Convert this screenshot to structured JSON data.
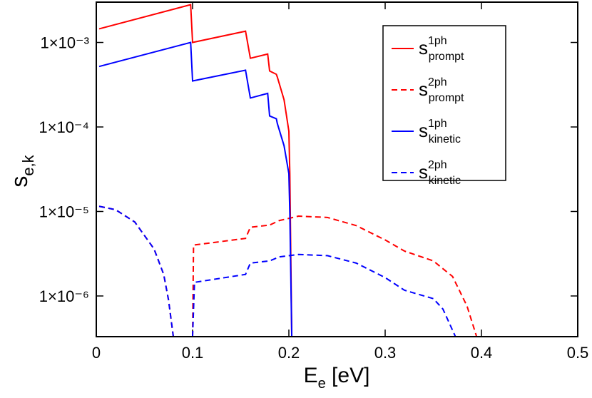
{
  "chart_data": {
    "type": "line",
    "xlabel": "E",
    "xlabel_sub": "e",
    "xlabel_rest": " [eV]",
    "ylabel": "s",
    "ylabel_sub": "e,k",
    "xlim": [
      0,
      0.5
    ],
    "xticks": [
      0,
      0.1,
      0.2,
      0.3,
      0.4,
      0.5
    ],
    "ylog": true,
    "ylim": [
      3.3e-07,
      0.003
    ],
    "yticks": [
      {
        "value": 1e-06,
        "label": "1×10⁻⁶"
      },
      {
        "value": 1e-05,
        "label": "1×10⁻⁵"
      },
      {
        "value": 0.0001,
        "label": "1×10⁻⁴"
      },
      {
        "value": 0.001,
        "label": "1×10⁻³"
      }
    ],
    "legend": "upper right",
    "series": [
      {
        "name": "s",
        "name_sup": "1ph",
        "name_sub": "prompt",
        "color": "#ff0000",
        "linestyle": "solid",
        "x": [
          0.003,
          0.098,
          0.1,
          0.155,
          0.16,
          0.178,
          0.18,
          0.187,
          0.188,
          0.195,
          0.2,
          0.201,
          0.203
        ],
        "values": [
          0.00145,
          0.0028,
          0.001,
          0.00136,
          0.00065,
          0.00073,
          0.00046,
          0.00042,
          0.00039,
          0.00021,
          8.9e-05,
          2.8e-05,
          3.3e-07
        ]
      },
      {
        "name": "s",
        "name_sup": "2ph",
        "name_sub": "prompt",
        "color": "#ff0000",
        "linestyle": "dashed",
        "x": [
          0.003,
          0.02,
          0.04,
          0.06,
          0.07,
          0.075,
          0.08,
          0.09,
          0.1,
          0.101,
          0.155,
          0.16,
          0.18,
          0.19,
          0.21,
          0.24,
          0.27,
          0.3,
          0.32,
          0.35,
          0.37,
          0.385,
          0.395
        ],
        "values": [
          1.15e-05,
          1.05e-05,
          7.5e-06,
          3.6e-06,
          1.8e-06,
          9e-07,
          3.3e-07,
          null,
          3.3e-07,
          4e-06,
          4.8e-06,
          6.5e-06,
          6.9e-06,
          7.8e-06,
          8.8e-06,
          8.5e-06,
          6.8e-06,
          4.6e-06,
          3.4e-06,
          2.6e-06,
          1.7e-06,
          7.6e-07,
          3.3e-07
        ]
      },
      {
        "name": "s",
        "name_sup": "1ph",
        "name_sub": "kinetic",
        "color": "#0000ff",
        "linestyle": "solid",
        "x": [
          0.003,
          0.098,
          0.1,
          0.155,
          0.16,
          0.178,
          0.18,
          0.187,
          0.188,
          0.195,
          0.2,
          0.201,
          0.203
        ],
        "values": [
          0.00052,
          0.001,
          0.00035,
          0.00047,
          0.00022,
          0.00025,
          0.000135,
          0.000125,
          0.00011,
          6e-05,
          2.8e-05,
          9.5e-06,
          3.3e-07
        ]
      },
      {
        "name": "s",
        "name_sup": "2ph",
        "name_sub": "kinetic",
        "color": "#0000ff",
        "linestyle": "dashed",
        "x": [
          0.003,
          0.02,
          0.04,
          0.06,
          0.07,
          0.075,
          0.08,
          0.09,
          0.1,
          0.102,
          0.155,
          0.16,
          0.18,
          0.19,
          0.21,
          0.24,
          0.27,
          0.3,
          0.32,
          0.35,
          0.36,
          0.373
        ],
        "values": [
          1.15e-05,
          1.05e-05,
          7.5e-06,
          3.6e-06,
          1.8e-06,
          9e-07,
          3.3e-07,
          null,
          3.3e-07,
          1.45e-06,
          1.8e-06,
          2.45e-06,
          2.6e-06,
          2.9e-06,
          3.1e-06,
          3e-06,
          2.45e-06,
          1.65e-06,
          1.17e-06,
          9.3e-07,
          7e-07,
          3.3e-07
        ]
      }
    ]
  }
}
